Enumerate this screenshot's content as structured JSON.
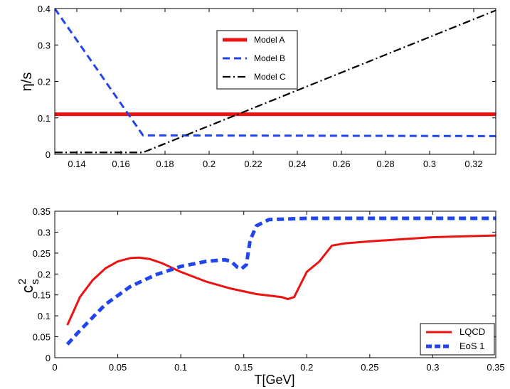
{
  "colors": {
    "red": "#ee1111",
    "blue": "#2244ee",
    "black": "#000000"
  },
  "chart_data": [
    {
      "type": "line",
      "title": "",
      "xlabel": "",
      "ylabel": "η/s",
      "xlim": [
        0.13,
        0.33
      ],
      "ylim": [
        0,
        0.4
      ],
      "xticks": [
        0.14,
        0.16,
        0.18,
        0.2,
        0.22,
        0.24,
        0.26,
        0.28,
        0.3,
        0.32
      ],
      "xtick_labels": [
        "0.14",
        "0.16",
        "0.18",
        "0.2",
        "0.22",
        "0.24",
        "0.26",
        "0.28",
        "0.3",
        "0.32"
      ],
      "yticks": [
        0,
        0.1,
        0.2,
        0.3,
        0.4
      ],
      "ytick_labels": [
        "0",
        "0.1",
        "0.2",
        "0.3",
        "0.4"
      ],
      "legend_position": "top-center",
      "series": [
        {
          "name": "Model A",
          "style": "solid",
          "color": "#ee1111",
          "x": [
            0.13,
            0.33
          ],
          "y": [
            0.11,
            0.11
          ]
        },
        {
          "name": "Model B",
          "style": "dashed",
          "color": "#2244ee",
          "x": [
            0.13,
            0.17,
            0.33
          ],
          "y": [
            0.4,
            0.052,
            0.05
          ]
        },
        {
          "name": "Model C",
          "style": "dash-dot",
          "color": "#000000",
          "x": [
            0.13,
            0.17,
            0.33
          ],
          "y": [
            0.005,
            0.005,
            0.395
          ]
        }
      ]
    },
    {
      "type": "line",
      "title": "",
      "xlabel": "T[GeV]",
      "ylabel": "c",
      "ylabel_sup": "2",
      "ylabel_sub": "s",
      "xlim": [
        0,
        0.35
      ],
      "ylim": [
        0,
        0.35
      ],
      "xticks": [
        0,
        0.05,
        0.1,
        0.15,
        0.2,
        0.25,
        0.3,
        0.35
      ],
      "xtick_labels": [
        "0",
        "0.05",
        "0.1",
        "0.15",
        "0.2",
        "0.25",
        "0.3",
        "0.35"
      ],
      "yticks": [
        0,
        0.05,
        0.1,
        0.15,
        0.2,
        0.25,
        0.3,
        0.35
      ],
      "ytick_labels": [
        "0",
        "0.05",
        "0.1",
        "0.15",
        "0.2",
        "0.25",
        "0.3",
        "0.35"
      ],
      "legend_position": "bottom-right",
      "series": [
        {
          "name": "LQCD",
          "style": "solid",
          "color": "#ee1111",
          "x": [
            0.01,
            0.02,
            0.03,
            0.04,
            0.05,
            0.06,
            0.067,
            0.075,
            0.085,
            0.1,
            0.12,
            0.14,
            0.16,
            0.18,
            0.185,
            0.19,
            0.195,
            0.2,
            0.21,
            0.22,
            0.23,
            0.25,
            0.3,
            0.35
          ],
          "y": [
            0.078,
            0.145,
            0.185,
            0.213,
            0.23,
            0.238,
            0.239,
            0.236,
            0.226,
            0.205,
            0.182,
            0.165,
            0.152,
            0.145,
            0.14,
            0.145,
            0.175,
            0.205,
            0.23,
            0.268,
            0.273,
            0.278,
            0.288,
            0.292
          ]
        },
        {
          "name": "EoS 1",
          "style": "dashed",
          "color": "#2244ee",
          "x": [
            0.01,
            0.02,
            0.04,
            0.06,
            0.08,
            0.1,
            0.12,
            0.135,
            0.14,
            0.145,
            0.148,
            0.152,
            0.155,
            0.16,
            0.17,
            0.2,
            0.25,
            0.3,
            0.35
          ],
          "y": [
            0.032,
            0.065,
            0.127,
            0.17,
            0.198,
            0.218,
            0.23,
            0.234,
            0.23,
            0.216,
            0.212,
            0.222,
            0.28,
            0.315,
            0.33,
            0.333,
            0.333,
            0.333,
            0.333
          ]
        }
      ]
    }
  ]
}
